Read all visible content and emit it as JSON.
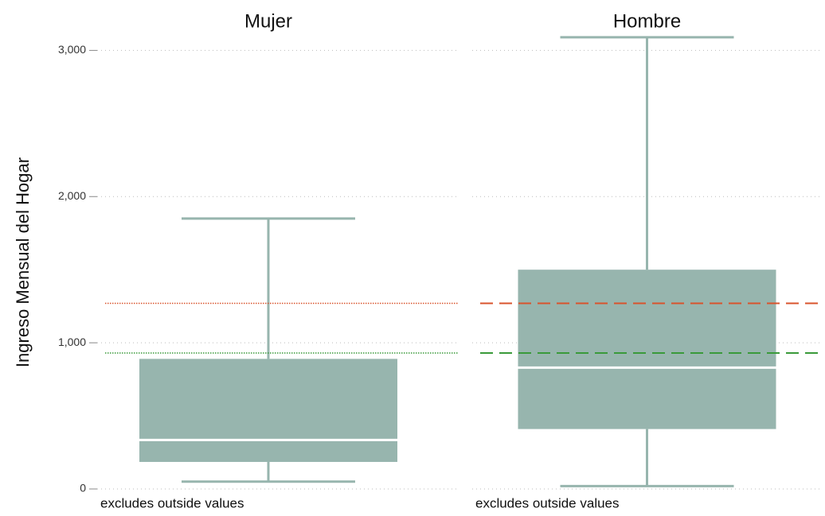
{
  "chart_data": {
    "type": "box",
    "ylabel": "Ingreso Mensual del Hogar",
    "ylim": [
      0,
      3100
    ],
    "yticks": [
      0,
      {
        "value": 1000,
        "label": "1,000"
      },
      {
        "value": 2000,
        "label": "2,000"
      },
      {
        "value": 3000,
        "label": "3,000"
      }
    ],
    "grid": true,
    "color": "#97b5ae",
    "median_color": "#ffffff",
    "lines": [
      {
        "value": 1270,
        "color": "#d9532c"
      },
      {
        "value": 930,
        "color": "#3a9a3a"
      }
    ],
    "panels": [
      {
        "title": "Mujer",
        "note": "excludes outside values",
        "line_style": "dotted",
        "box": {
          "min": 50,
          "q1": 185,
          "median": 335,
          "q3": 890,
          "max": 1850
        }
      },
      {
        "title": "Hombre",
        "note": "excludes outside values",
        "line_style": "dashed",
        "box": {
          "min": 20,
          "q1": 410,
          "median": 830,
          "q3": 1500,
          "max": 3090
        }
      }
    ]
  }
}
